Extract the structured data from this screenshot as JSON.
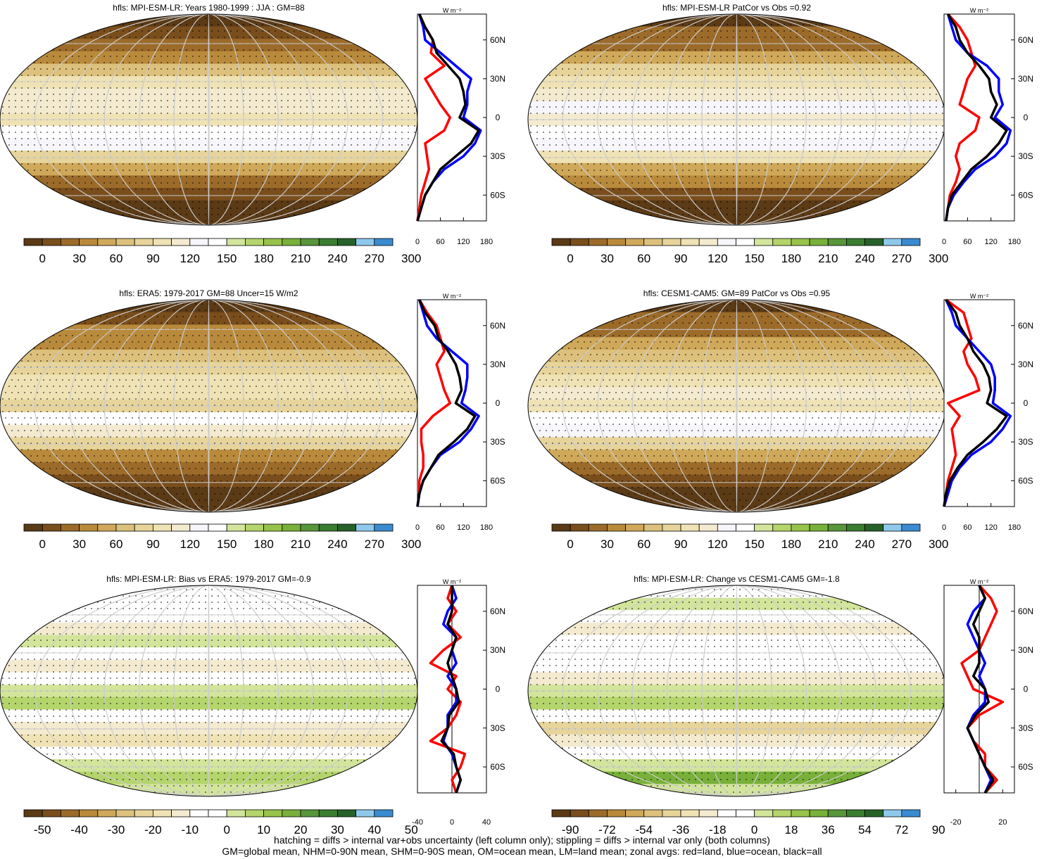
{
  "colors": {
    "abs_scale": [
      "#5b3a16",
      "#7a4e1c",
      "#9c6b2a",
      "#b98a3c",
      "#cfa85a",
      "#dcc07c",
      "#e7d49a",
      "#efe2b5",
      "#f3ead0",
      "#f6f6fb",
      "#ffffff",
      "#d2e59b",
      "#b4d46c",
      "#97c34a",
      "#78b03a",
      "#57963a",
      "#3a7c30",
      "#27612a",
      "#8ec9ec",
      "#3a8bd0"
    ],
    "diff_scale": [
      "#5b3a16",
      "#7a4e1c",
      "#9c6b2a",
      "#b98a3c",
      "#cfa85a",
      "#dcc07c",
      "#e7d49a",
      "#efe2b5",
      "#f3ead0",
      "#ffffff",
      "#ffffff",
      "#d2e59b",
      "#b4d46c",
      "#97c34a",
      "#78b03a",
      "#57963a",
      "#3a7c30",
      "#27612a",
      "#8ec9ec",
      "#3a8bd0"
    ],
    "land": "#ff0000",
    "ocean": "#0000ff",
    "all": "#000000"
  },
  "footer": {
    "line1": "hatching = diffs > internal var+obs uncertainty (left column only); stippling = diffs > internal var only (both columns)",
    "line2": "GM=global mean, NHM=0-90N mean, SHM=0-90S mean, OM=ocean mean, LM=land mean; zonal avgs: red=land, blue=ocean, black=all"
  },
  "unit_label": "W m⁻²",
  "lat_ticks": [
    "60N",
    "30N",
    "0",
    "30S",
    "60S"
  ],
  "chart_data": [
    {
      "type": "heatmap",
      "title": "hfls: MPI-ESM-LR: Years 1980-1999 : JJA : GM=88",
      "colorbar_ticks": [
        "0",
        "30",
        "60",
        "90",
        "120",
        "150",
        "180",
        "210",
        "240",
        "270",
        "300"
      ],
      "zonal_xticks": [
        "0",
        "60",
        "120",
        "180"
      ],
      "zonal_xlim": [
        0,
        180
      ],
      "zonal": {
        "lat": [
          80,
          70,
          60,
          50,
          40,
          30,
          20,
          10,
          0,
          -10,
          -20,
          -30,
          -40,
          -50,
          -60,
          -70,
          -80
        ],
        "land": [
          5,
          20,
          40,
          35,
          70,
          20,
          40,
          60,
          85,
          70,
          20,
          25,
          30,
          20,
          10,
          5,
          0
        ],
        "ocean": [
          5,
          15,
          20,
          60,
          100,
          140,
          130,
          130,
          120,
          165,
          150,
          120,
          70,
          40,
          20,
          10,
          0
        ],
        "all": [
          5,
          20,
          40,
          50,
          80,
          110,
          120,
          125,
          110,
          160,
          140,
          100,
          60,
          40,
          20,
          10,
          0
        ]
      }
    },
    {
      "type": "heatmap",
      "title": "hfls: MPI-ESM-LR PatCor vs Obs =0.92",
      "colorbar_ticks": [
        "0",
        "30",
        "60",
        "90",
        "120",
        "150",
        "180",
        "210",
        "240",
        "270",
        "300"
      ],
      "zonal_xticks": [
        "0",
        "60",
        "120",
        "180"
      ],
      "zonal_xlim": [
        0,
        180
      ],
      "zonal": {
        "lat": [
          80,
          70,
          60,
          50,
          40,
          30,
          20,
          10,
          0,
          -10,
          -20,
          -30,
          -40,
          -50,
          -60,
          -70,
          -80
        ],
        "land": [
          10,
          40,
          60,
          70,
          80,
          60,
          50,
          40,
          90,
          80,
          40,
          30,
          40,
          30,
          15,
          10,
          5
        ],
        "ocean": [
          10,
          20,
          30,
          60,
          110,
          140,
          140,
          150,
          130,
          170,
          160,
          130,
          80,
          50,
          25,
          10,
          5
        ],
        "all": [
          10,
          30,
          40,
          60,
          90,
          115,
          120,
          135,
          120,
          160,
          140,
          110,
          70,
          45,
          20,
          10,
          5
        ]
      }
    },
    {
      "type": "heatmap",
      "title": "hfls: ERA5: 1979-2017 GM=88 Uncer=15 W/m2",
      "colorbar_ticks": [
        "0",
        "30",
        "60",
        "90",
        "120",
        "150",
        "180",
        "210",
        "240",
        "270",
        "300"
      ],
      "zonal_xticks": [
        "0",
        "60",
        "120",
        "180"
      ],
      "zonal_xlim": [
        0,
        180
      ],
      "zonal": {
        "lat": [
          80,
          70,
          60,
          50,
          40,
          30,
          20,
          10,
          0,
          -10,
          -20,
          -30,
          -40,
          -50,
          -60,
          -70,
          -80
        ],
        "land": [
          5,
          25,
          50,
          60,
          70,
          50,
          60,
          70,
          85,
          40,
          10,
          10,
          15,
          15,
          5,
          5,
          0
        ],
        "ocean": [
          5,
          15,
          25,
          50,
          90,
          130,
          130,
          125,
          115,
          160,
          140,
          110,
          60,
          35,
          15,
          5,
          0
        ],
        "all": [
          5,
          20,
          45,
          55,
          80,
          100,
          110,
          115,
          100,
          150,
          130,
          95,
          55,
          35,
          15,
          5,
          0
        ]
      }
    },
    {
      "type": "heatmap",
      "title": "hfls: CESM1-CAM5: GM=89 PatCor vs Obs =0.95",
      "colorbar_ticks": [
        "0",
        "30",
        "60",
        "90",
        "120",
        "150",
        "180",
        "210",
        "240",
        "270",
        "300"
      ],
      "zonal_xticks": [
        "0",
        "60",
        "120",
        "180"
      ],
      "zonal_xlim": [
        0,
        180
      ],
      "zonal": {
        "lat": [
          80,
          70,
          60,
          50,
          40,
          30,
          20,
          10,
          0,
          -10,
          -20,
          -30,
          -40,
          -50,
          -60,
          -70,
          -80
        ],
        "land": [
          5,
          50,
          60,
          70,
          50,
          60,
          80,
          90,
          10,
          40,
          20,
          25,
          30,
          20,
          10,
          5,
          0
        ],
        "ocean": [
          5,
          20,
          30,
          60,
          90,
          120,
          130,
          130,
          125,
          170,
          150,
          120,
          70,
          40,
          20,
          10,
          0
        ],
        "all": [
          5,
          30,
          40,
          60,
          75,
          100,
          115,
          120,
          110,
          160,
          135,
          100,
          60,
          35,
          15,
          5,
          0
        ]
      }
    },
    {
      "type": "heatmap",
      "title": "hfls: MPI-ESM-LR: Bias vs ERA5: 1979-2017 GM=-0.9",
      "colorbar_ticks": [
        "-50",
        "-40",
        "-30",
        "-20",
        "-10",
        "0",
        "10",
        "20",
        "30",
        "40",
        "50"
      ],
      "zonal_xticks": [
        "-40",
        "0",
        "40"
      ],
      "zonal_xlim": [
        -40,
        40
      ],
      "zonal": {
        "lat": [
          80,
          70,
          60,
          50,
          40,
          30,
          20,
          10,
          0,
          -10,
          -20,
          -30,
          -40,
          -50,
          -60,
          -70,
          -80
        ],
        "land": [
          0,
          -5,
          5,
          -5,
          10,
          -10,
          -25,
          5,
          -5,
          10,
          5,
          -5,
          -25,
          15,
          10,
          0,
          5
        ],
        "ocean": [
          0,
          5,
          -5,
          -10,
          5,
          0,
          5,
          -5,
          5,
          5,
          -5,
          -5,
          -10,
          0,
          5,
          10,
          5
        ],
        "all": [
          0,
          0,
          0,
          -5,
          5,
          0,
          -5,
          0,
          5,
          8,
          -3,
          -5,
          -12,
          2,
          5,
          10,
          5
        ]
      }
    },
    {
      "type": "heatmap",
      "title": "hfls: MPI-ESM-LR: Change vs CESM1-CAM5 GM=-1.8",
      "colorbar_ticks": [
        "-90",
        "-72",
        "-54",
        "-36",
        "-18",
        "0",
        "18",
        "36",
        "54",
        "72",
        "90"
      ],
      "zonal_xticks": [
        "-20",
        "20"
      ],
      "zonal_xlim": [
        -30,
        30
      ],
      "zonal": {
        "lat": [
          80,
          70,
          60,
          50,
          40,
          30,
          20,
          10,
          0,
          -10,
          -20,
          -30,
          -40,
          -50,
          -60,
          -70,
          -80
        ],
        "land": [
          0,
          10,
          15,
          10,
          5,
          0,
          -15,
          -10,
          -5,
          20,
          0,
          -10,
          -5,
          5,
          5,
          15,
          5
        ],
        "ocean": [
          0,
          5,
          -5,
          -10,
          -5,
          0,
          5,
          0,
          5,
          5,
          -5,
          -10,
          -5,
          0,
          5,
          10,
          5
        ],
        "all": [
          0,
          5,
          0,
          -5,
          0,
          0,
          0,
          -5,
          5,
          8,
          -3,
          -10,
          -5,
          0,
          5,
          12,
          5
        ]
      }
    }
  ]
}
